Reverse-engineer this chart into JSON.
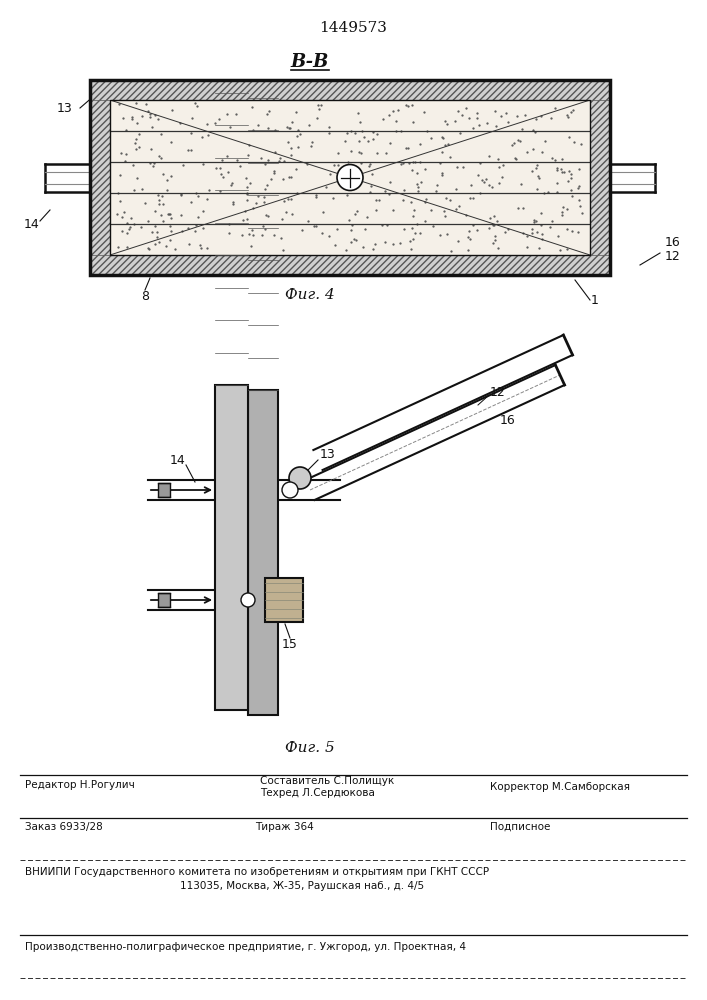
{
  "patent_number": "1449573",
  "background_color": "#ffffff",
  "fig4_label": "Фиг. 4",
  "fig5_label": "Фиг. 5",
  "section_label": "B-B",
  "footer_line1_left": "Редактор Н.Рогулич",
  "footer_line1_mid": "Составитель С.Полищук",
  "footer_line2_mid": "Техред Л.Сердюкова",
  "footer_line2_right": "Корректор М.Самборская",
  "footer_line3_left": "Заказ 6933/28",
  "footer_line3_mid": "Тираж 364",
  "footer_line3_right": "Подписное",
  "footer_line4": "ВНИИПИ Государственного комитета по изобретениям и открытиям при ГКНТ СССР",
  "footer_line5": "113035, Москва, Ж-35, Раушская наб., д. 4/5",
  "footer_line6": "Производственно-полиграфическое предприятие, г. Ужгород, ул. Проектная, 4"
}
